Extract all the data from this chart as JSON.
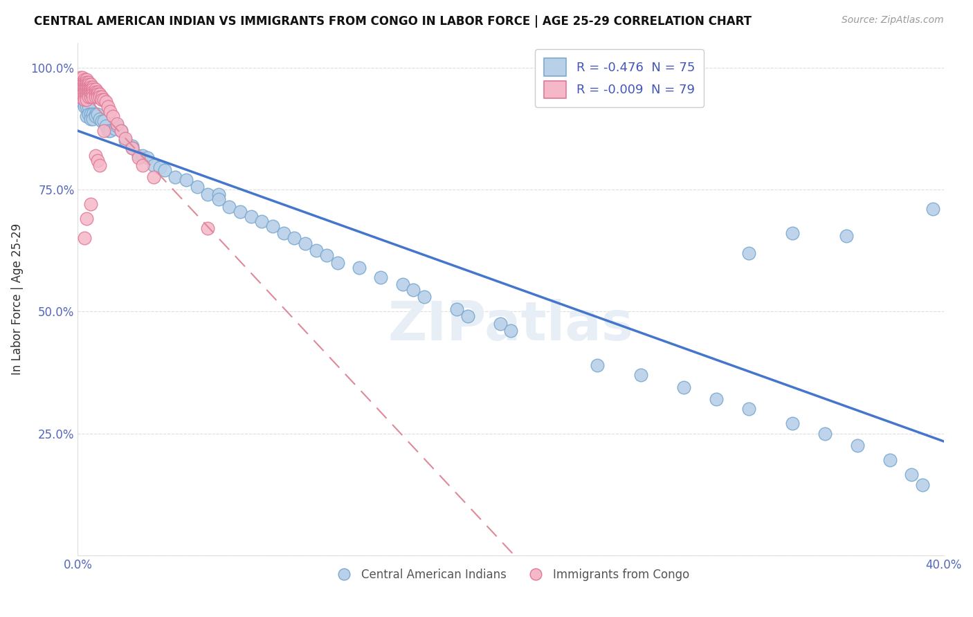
{
  "title": "CENTRAL AMERICAN INDIAN VS IMMIGRANTS FROM CONGO IN LABOR FORCE | AGE 25-29 CORRELATION CHART",
  "source": "Source: ZipAtlas.com",
  "ylabel": "In Labor Force | Age 25-29",
  "blue_R": -0.476,
  "blue_N": 75,
  "pink_R": -0.009,
  "pink_N": 79,
  "blue_color": "#b8d0e8",
  "blue_edge": "#7aaad0",
  "pink_color": "#f5b8c8",
  "pink_edge": "#e07898",
  "blue_line_color": "#4477cc",
  "pink_line_color": "#e08898",
  "legend1_label": "Central American Indians",
  "legend2_label": "Immigrants from Congo",
  "blue_x": [
    0.001,
    0.002,
    0.002,
    0.003,
    0.003,
    0.004,
    0.004,
    0.005,
    0.005,
    0.006,
    0.006,
    0.007,
    0.007,
    0.008,
    0.008,
    0.009,
    0.01,
    0.011,
    0.012,
    0.013,
    0.014,
    0.015,
    0.017,
    0.018,
    0.02,
    0.022,
    0.025,
    0.025,
    0.028,
    0.03,
    0.032,
    0.035,
    0.038,
    0.04,
    0.045,
    0.05,
    0.055,
    0.06,
    0.065,
    0.065,
    0.07,
    0.075,
    0.08,
    0.085,
    0.09,
    0.095,
    0.1,
    0.105,
    0.11,
    0.115,
    0.12,
    0.13,
    0.14,
    0.15,
    0.155,
    0.16,
    0.175,
    0.18,
    0.195,
    0.2,
    0.24,
    0.26,
    0.28,
    0.295,
    0.31,
    0.33,
    0.345,
    0.36,
    0.375,
    0.385,
    0.39,
    0.31,
    0.33,
    0.355,
    0.395
  ],
  "blue_y": [
    0.935,
    0.97,
    0.93,
    0.93,
    0.92,
    0.92,
    0.9,
    0.92,
    0.905,
    0.905,
    0.895,
    0.905,
    0.895,
    0.905,
    0.9,
    0.905,
    0.895,
    0.89,
    0.89,
    0.88,
    0.87,
    0.87,
    0.875,
    0.88,
    0.87,
    0.85,
    0.84,
    0.835,
    0.82,
    0.82,
    0.815,
    0.8,
    0.795,
    0.79,
    0.775,
    0.77,
    0.755,
    0.74,
    0.74,
    0.73,
    0.715,
    0.705,
    0.695,
    0.685,
    0.675,
    0.66,
    0.65,
    0.64,
    0.625,
    0.615,
    0.6,
    0.59,
    0.57,
    0.555,
    0.545,
    0.53,
    0.505,
    0.49,
    0.475,
    0.46,
    0.39,
    0.37,
    0.345,
    0.32,
    0.3,
    0.27,
    0.25,
    0.225,
    0.195,
    0.165,
    0.145,
    0.62,
    0.66,
    0.655,
    0.71
  ],
  "pink_x": [
    0.001,
    0.001,
    0.001,
    0.001,
    0.001,
    0.002,
    0.002,
    0.002,
    0.002,
    0.002,
    0.002,
    0.002,
    0.003,
    0.003,
    0.003,
    0.003,
    0.003,
    0.003,
    0.003,
    0.003,
    0.003,
    0.004,
    0.004,
    0.004,
    0.004,
    0.004,
    0.004,
    0.004,
    0.004,
    0.004,
    0.005,
    0.005,
    0.005,
    0.005,
    0.005,
    0.005,
    0.005,
    0.006,
    0.006,
    0.006,
    0.006,
    0.006,
    0.006,
    0.007,
    0.007,
    0.007,
    0.007,
    0.007,
    0.008,
    0.008,
    0.008,
    0.008,
    0.009,
    0.009,
    0.009,
    0.01,
    0.01,
    0.011,
    0.011,
    0.012,
    0.013,
    0.014,
    0.015,
    0.016,
    0.018,
    0.02,
    0.022,
    0.025,
    0.028,
    0.03,
    0.035,
    0.012,
    0.008,
    0.009,
    0.01,
    0.006,
    0.003,
    0.004,
    0.06
  ],
  "pink_y": [
    0.98,
    0.97,
    0.96,
    0.95,
    0.94,
    0.98,
    0.97,
    0.965,
    0.96,
    0.955,
    0.95,
    0.945,
    0.975,
    0.97,
    0.965,
    0.96,
    0.955,
    0.95,
    0.945,
    0.94,
    0.935,
    0.975,
    0.97,
    0.965,
    0.96,
    0.955,
    0.95,
    0.945,
    0.94,
    0.935,
    0.97,
    0.965,
    0.96,
    0.955,
    0.95,
    0.945,
    0.94,
    0.965,
    0.96,
    0.955,
    0.95,
    0.945,
    0.94,
    0.96,
    0.955,
    0.95,
    0.945,
    0.94,
    0.955,
    0.95,
    0.945,
    0.94,
    0.95,
    0.945,
    0.94,
    0.945,
    0.94,
    0.94,
    0.935,
    0.935,
    0.93,
    0.92,
    0.91,
    0.9,
    0.885,
    0.87,
    0.855,
    0.835,
    0.815,
    0.8,
    0.775,
    0.87,
    0.82,
    0.81,
    0.8,
    0.72,
    0.65,
    0.69,
    0.67
  ]
}
